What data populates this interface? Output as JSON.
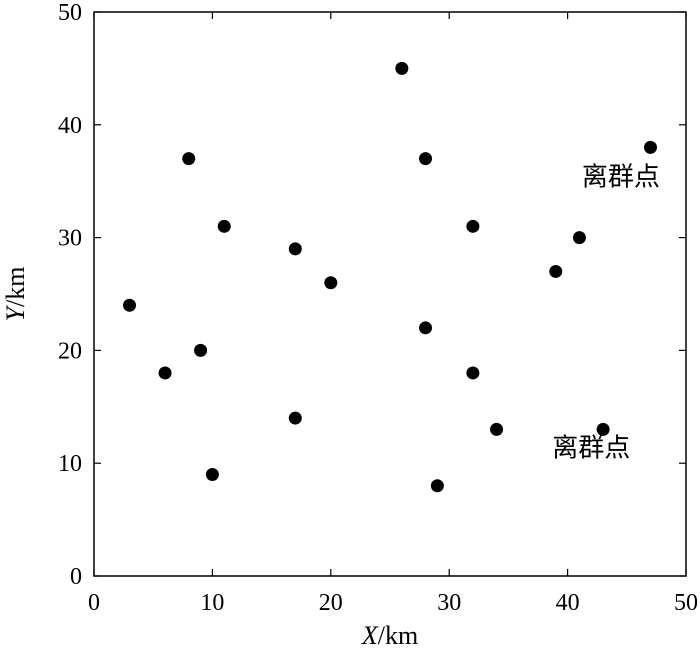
{
  "chart_data": {
    "type": "scatter",
    "title": "",
    "xlabel_var": "X",
    "xlabel_unit": "/km",
    "ylabel_var": "Y",
    "ylabel_unit": "/km",
    "xlim": [
      0,
      50
    ],
    "ylim": [
      0,
      50
    ],
    "xticks": [
      0,
      10,
      20,
      30,
      40,
      50
    ],
    "yticks": [
      0,
      10,
      20,
      30,
      40,
      50
    ],
    "grid": false,
    "marker_color": "#000000",
    "series": [
      {
        "points": [
          {
            "x": 3,
            "y": 24
          },
          {
            "x": 6,
            "y": 18
          },
          {
            "x": 8,
            "y": 37
          },
          {
            "x": 9,
            "y": 20
          },
          {
            "x": 10,
            "y": 9
          },
          {
            "x": 11,
            "y": 31
          },
          {
            "x": 17,
            "y": 29
          },
          {
            "x": 17,
            "y": 14
          },
          {
            "x": 20,
            "y": 26
          },
          {
            "x": 26,
            "y": 45
          },
          {
            "x": 28,
            "y": 37
          },
          {
            "x": 28,
            "y": 22
          },
          {
            "x": 29,
            "y": 8
          },
          {
            "x": 32,
            "y": 31
          },
          {
            "x": 32,
            "y": 18
          },
          {
            "x": 34,
            "y": 13
          },
          {
            "x": 39,
            "y": 27
          },
          {
            "x": 41,
            "y": 30
          },
          {
            "x": 43,
            "y": 13
          },
          {
            "x": 47,
            "y": 38
          }
        ]
      }
    ],
    "annotations": [
      {
        "text": "离群点",
        "x": 44.5,
        "y": 34.6
      },
      {
        "text": "离群点",
        "x": 42,
        "y": 10.6
      }
    ]
  }
}
